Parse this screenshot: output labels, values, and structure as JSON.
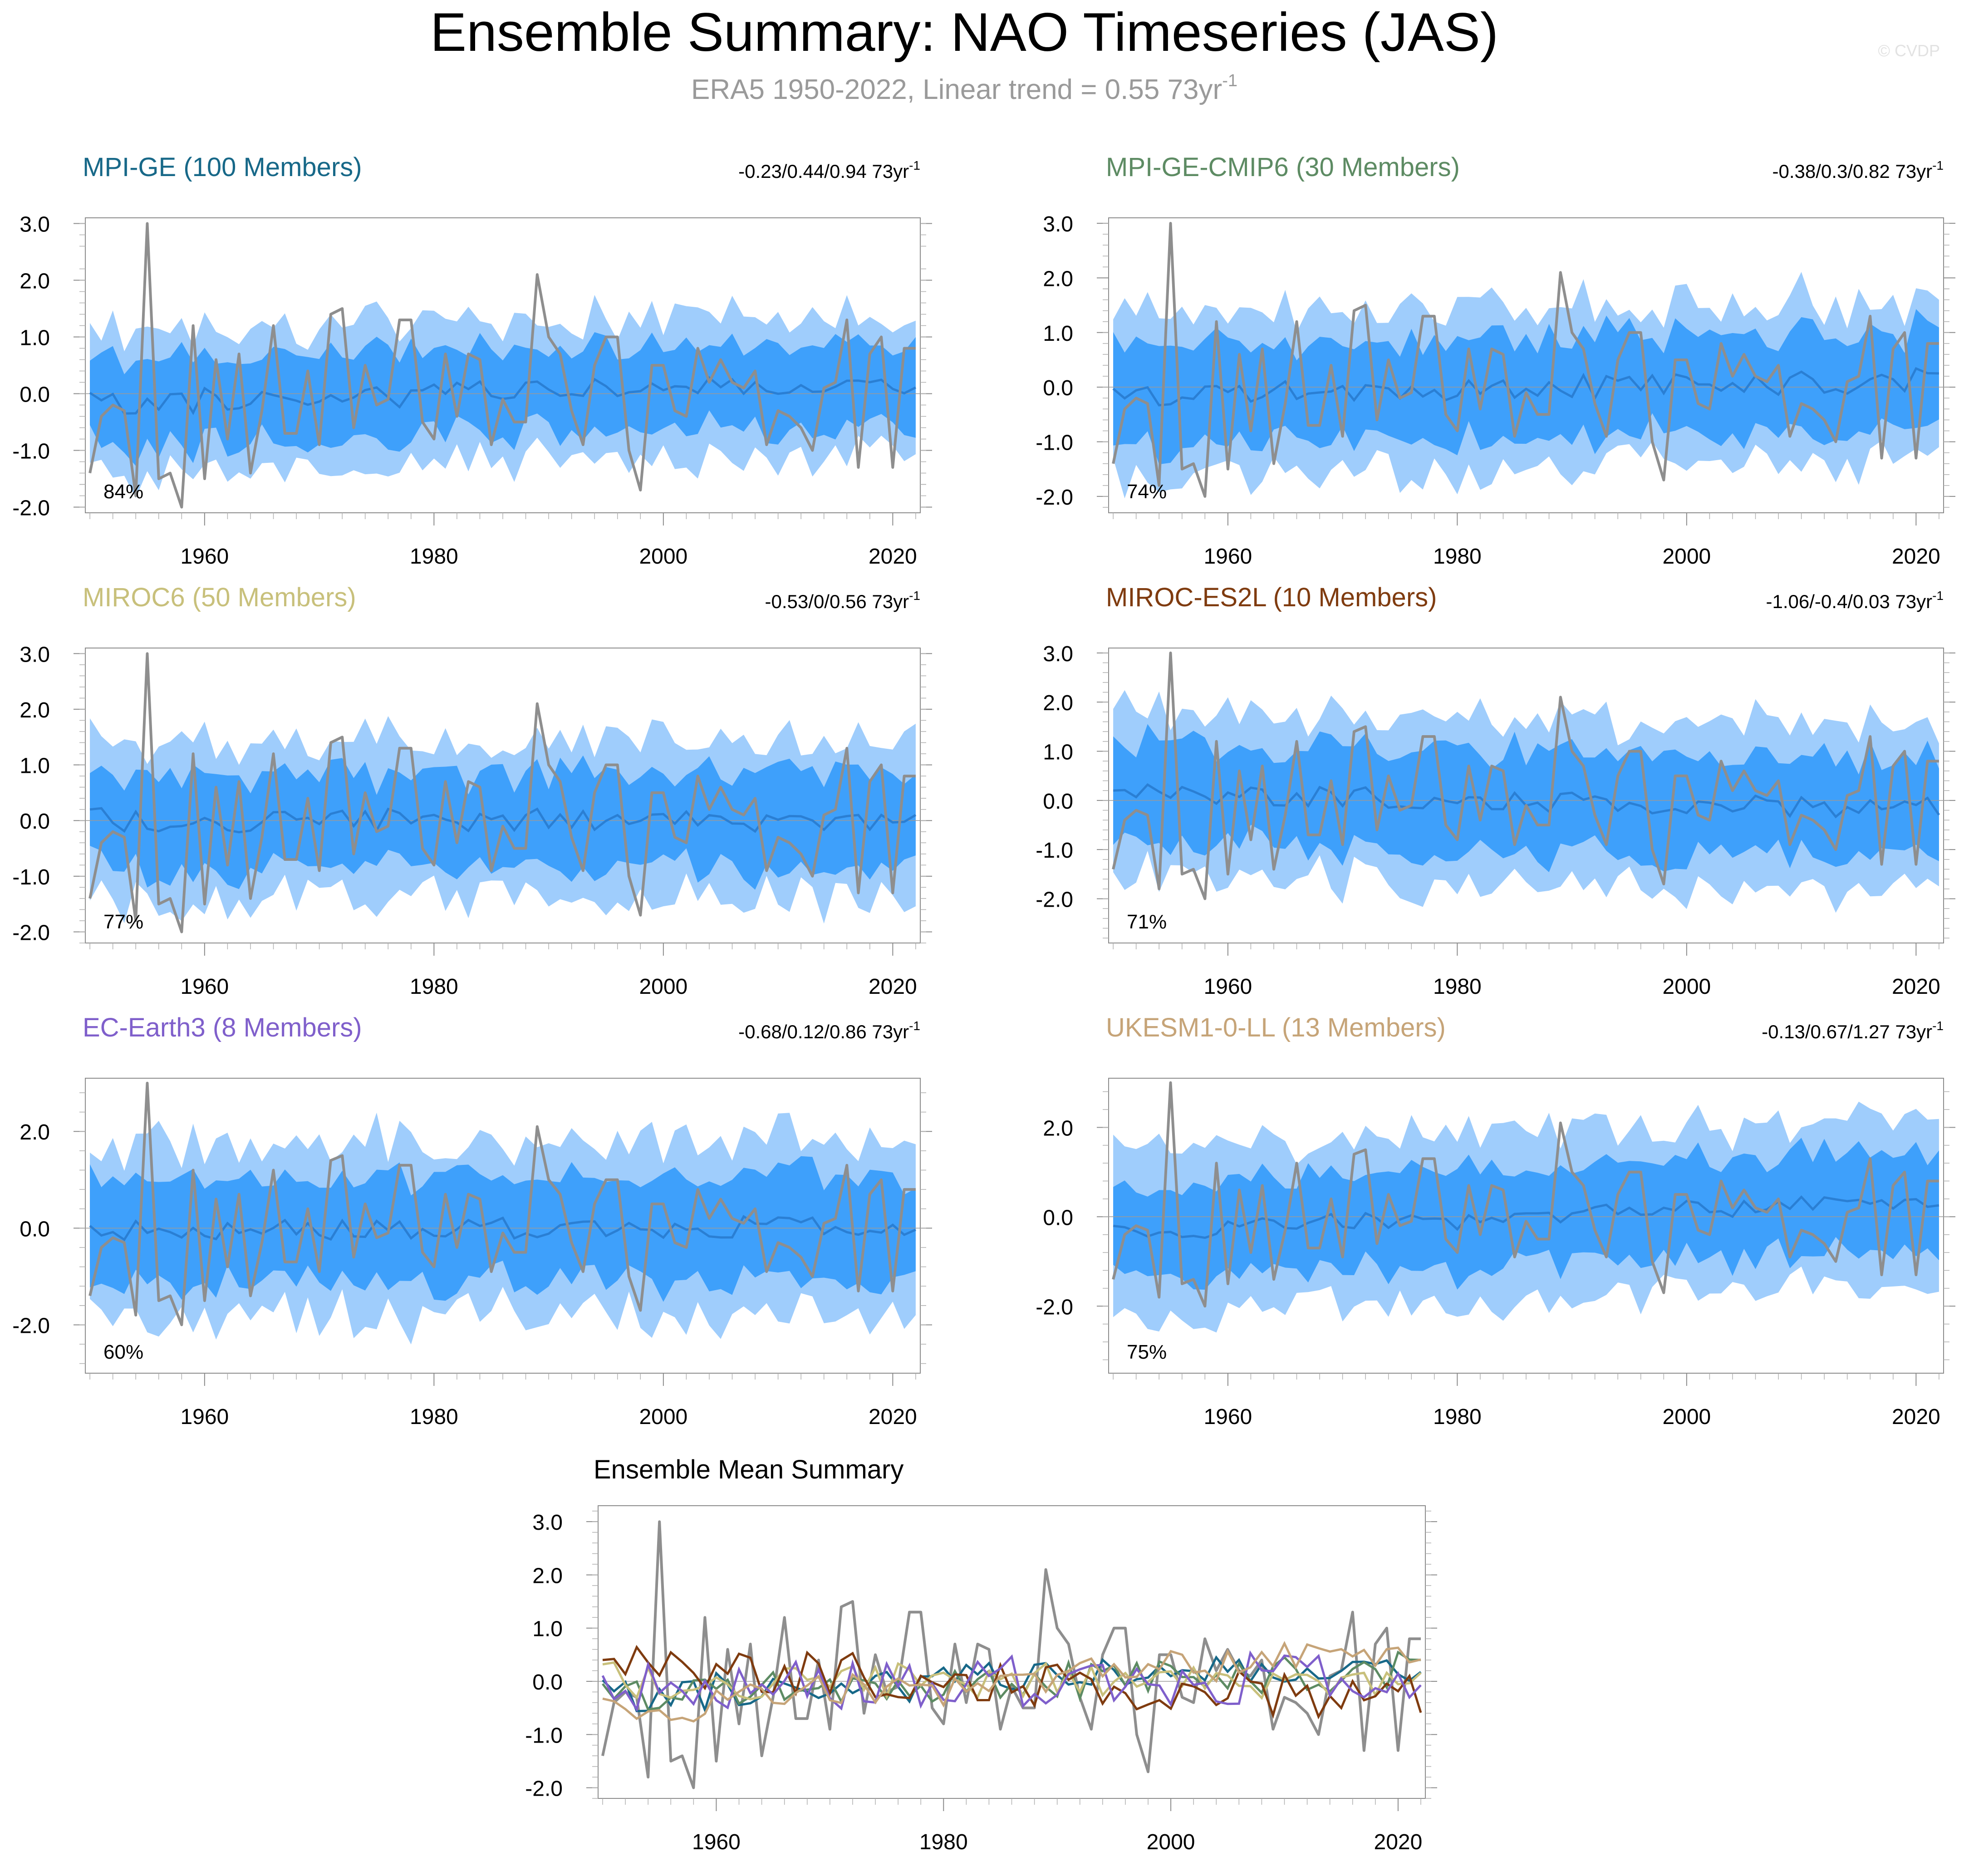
{
  "title": "Ensemble Summary: NAO Timeseries (JAS)",
  "subtitle": {
    "text": "ERA5 1950-2022, Linear trend = 0.55 73yr",
    "sup": "-1"
  },
  "watermark": "© CVDP",
  "trend_unit": {
    "text": " 73yr",
    "sup": "-1"
  },
  "colors": {
    "outer_band": "#9fcdfc",
    "inner_band": "#3ea0fb",
    "ens_mean_line": "#2a7fd4",
    "obs_line": "#8e8e8e",
    "zero_line": "#9a9a9a"
  },
  "chart_data": [
    {
      "type": "line",
      "title": "MPI-GE (100 Members)",
      "title_color": "#176888",
      "trend_text": "-0.23/0.44/0.94",
      "percent_label": "84%",
      "ylim": [
        -2.1,
        3.1
      ],
      "yticks": [
        "-2.0",
        "-1.0",
        "0.0",
        "1.0",
        "2.0",
        "3.0"
      ],
      "ytick_values": [
        -2,
        -1,
        0,
        1,
        2,
        3
      ],
      "xticks": [
        "1960",
        "1980",
        "2000",
        "2020"
      ],
      "xlim": [
        1949.6,
        2022.4
      ],
      "spread": 0.75,
      "trend": 0.35,
      "seed": 11
    },
    {
      "type": "line",
      "title": "MPI-GE-CMIP6 (30 Members)",
      "title_color": "#5d8b63",
      "trend_text": "-0.38/0.3/0.82",
      "percent_label": "74%",
      "ylim": [
        -2.3,
        3.1
      ],
      "yticks": [
        "-2.0",
        "-1.0",
        "0.0",
        "1.0",
        "2.0",
        "3.0"
      ],
      "ytick_values": [
        -2,
        -1,
        0,
        1,
        2,
        3
      ],
      "xticks": [
        "1960",
        "1980",
        "2000",
        "2020"
      ],
      "xlim": [
        1949.6,
        2022.4
      ],
      "spread": 0.9,
      "trend": 0.25,
      "seed": 23
    },
    {
      "type": "line",
      "title": "MIROC6 (50 Members)",
      "title_color": "#c8c07b",
      "trend_text": "-0.53/0/0.56",
      "percent_label": "77%",
      "ylim": [
        -2.2,
        3.1
      ],
      "yticks": [
        "-2.0",
        "-1.0",
        "0.0",
        "1.0",
        "2.0",
        "3.0"
      ],
      "ytick_values": [
        -2,
        -1,
        0,
        1,
        2,
        3
      ],
      "xticks": [
        "1960",
        "1980",
        "2000",
        "2020"
      ],
      "xlim": [
        1949.6,
        2022.4
      ],
      "spread": 0.85,
      "trend": 0.0,
      "seed": 37
    },
    {
      "type": "line",
      "title": "MIROC-ES2L (10 Members)",
      "title_color": "#7f3b0f",
      "trend_text": "-1.06/-0.4/0.03",
      "percent_label": "71%",
      "ylim": [
        -2.9,
        3.1
      ],
      "yticks": [
        "-2.0",
        "-1.0",
        "0.0",
        "1.0",
        "2.0",
        "3.0"
      ],
      "ytick_values": [
        -2,
        -1,
        0,
        1,
        2,
        3
      ],
      "xticks": [
        "1960",
        "1980",
        "2000",
        "2020"
      ],
      "xlim": [
        1949.6,
        2022.4
      ],
      "spread": 1.0,
      "trend": -0.3,
      "seed": 53
    },
    {
      "type": "line",
      "title": "EC-Earth3 (8 Members)",
      "title_color": "#7f5fcb",
      "trend_text": "-0.68/0.12/0.86",
      "percent_label": "60%",
      "ylim": [
        -3.0,
        3.1
      ],
      "yticks": [
        "-2.0",
        "0.0",
        "2.0"
      ],
      "ytick_values": [
        -2,
        0,
        2
      ],
      "xticks": [
        "1960",
        "1980",
        "2000",
        "2020"
      ],
      "xlim": [
        1949.6,
        2022.4
      ],
      "spread": 1.1,
      "trend": 0.1,
      "seed": 71
    },
    {
      "type": "line",
      "title": "UKESM1-0-LL (13 Members)",
      "title_color": "#c6a478",
      "trend_text": "-0.13/0.67/1.27",
      "percent_label": "75%",
      "ylim": [
        -3.5,
        3.1
      ],
      "yticks": [
        "-2.0",
        "0.0",
        "2.0"
      ],
      "ytick_values": [
        -2,
        0,
        2
      ],
      "xticks": [
        "1960",
        "1980",
        "2000",
        "2020"
      ],
      "xlim": [
        1949.6,
        2022.4
      ],
      "spread": 1.1,
      "trend": 0.7,
      "seed": 89
    }
  ],
  "summary_chart": {
    "type": "line",
    "title": "Ensemble Mean Summary",
    "ylim": [
      -2.2,
      3.3
    ],
    "yticks": [
      "-2.0",
      "-1.0",
      "0.0",
      "1.0",
      "2.0",
      "3.0"
    ],
    "ytick_values": [
      -2,
      -1,
      0,
      1,
      2,
      3
    ],
    "xticks": [
      "1960",
      "1980",
      "2000",
      "2020"
    ],
    "xlim": [
      1949.6,
      2022.4
    ],
    "series_colors": [
      "#176888",
      "#5d8b63",
      "#c8c07b",
      "#7f3b0f",
      "#7f5fcb",
      "#c6a478"
    ]
  },
  "observations": {
    "name": "ERA5",
    "years": [
      1950,
      2022
    ],
    "values": [
      -1.4,
      -0.4,
      -0.2,
      -0.3,
      -1.8,
      3.0,
      -1.5,
      -1.4,
      -2.0,
      1.2,
      -1.5,
      0.6,
      -0.8,
      0.7,
      -1.4,
      -0.3,
      1.2,
      -0.7,
      -0.7,
      0.4,
      -0.9,
      1.4,
      1.5,
      -0.6,
      0.5,
      -0.2,
      -0.1,
      1.3,
      1.3,
      -0.5,
      -0.8,
      0.7,
      -0.4,
      0.7,
      0.6,
      -0.9,
      -0.1,
      -0.5,
      -0.5,
      2.1,
      1.0,
      0.7,
      -0.3,
      -0.9,
      0.5,
      1.0,
      1.0,
      -1.0,
      -1.7,
      0.5,
      0.5,
      -0.3,
      -0.4,
      0.8,
      0.2,
      0.6,
      0.2,
      0.1,
      0.4,
      -0.9,
      -0.3,
      -0.4,
      -0.6,
      -1.0,
      0.1,
      0.2,
      1.3,
      -1.3,
      0.7,
      1.0,
      -1.3,
      0.8,
      0.8
    ]
  }
}
